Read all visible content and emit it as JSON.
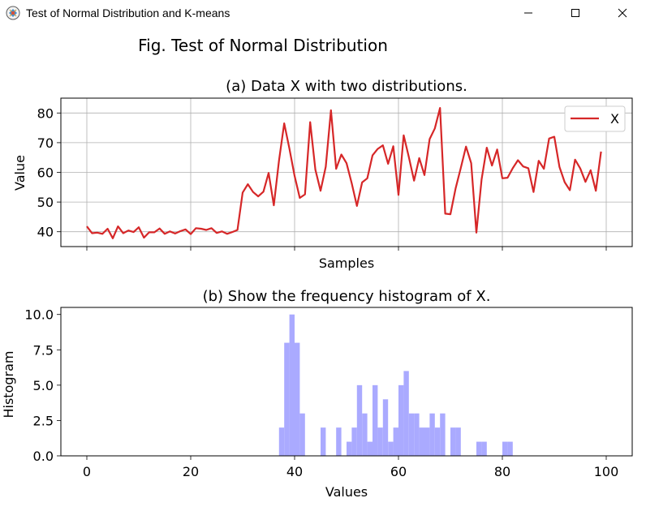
{
  "window": {
    "title": "Test of Normal Distribution and K-means",
    "icon": "app-icon"
  },
  "figure": {
    "suptitle": "Fig. Test of Normal Distribution"
  },
  "chart_data": [
    {
      "type": "line",
      "title": "(a) Data X with two distributions.",
      "xlabel": "Samples",
      "ylabel": "Value",
      "xlim": [
        -5,
        105
      ],
      "ylim": [
        35,
        85
      ],
      "yticks": [
        40,
        50,
        60,
        70,
        80
      ],
      "xticks": [
        0,
        20,
        40,
        60,
        80,
        100
      ],
      "show_xticklabels": false,
      "grid": true,
      "legend": {
        "position": "top-right",
        "entries": [
          "X"
        ]
      },
      "series": [
        {
          "name": "X",
          "color": "#d62728",
          "values": [
            41.8,
            39.5,
            39.7,
            39.3,
            41.0,
            37.8,
            41.8,
            39.5,
            40.4,
            39.9,
            41.5,
            38.0,
            39.8,
            39.8,
            41.1,
            39.3,
            40.1,
            39.4,
            40.2,
            40.8,
            39.2,
            41.2,
            41.0,
            40.6,
            41.2,
            39.6,
            40.1,
            39.3,
            39.9,
            40.6,
            53.2,
            56.0,
            53.4,
            51.9,
            53.5,
            59.8,
            48.9,
            64.0,
            76.5,
            68.0,
            58.8,
            51.4,
            52.6,
            76.9,
            60.9,
            53.8,
            61.9,
            80.9,
            61.2,
            66.0,
            63.1,
            56.3,
            48.7,
            56.6,
            58.0,
            65.7,
            67.9,
            69.1,
            62.9,
            68.8,
            52.4,
            72.5,
            65.1,
            57.2,
            64.8,
            59.1,
            71.2,
            74.8,
            81.7,
            46.1,
            45.9,
            54.6,
            61.5,
            68.7,
            63.1,
            39.7,
            57.6,
            68.3,
            62.3,
            67.7,
            58.0,
            58.2,
            61.4,
            64.1,
            62.0,
            61.4,
            53.4,
            63.9,
            61.2,
            71.4,
            72.0,
            61.8,
            56.7,
            54.0,
            64.3,
            61.3,
            56.8,
            60.7,
            53.8,
            67.0
          ]
        }
      ]
    },
    {
      "type": "bar",
      "title": "(b) Show the frequency histogram of X.",
      "xlabel": "Values",
      "ylabel": "Histogram",
      "xlim": [
        -5,
        105
      ],
      "ylim": [
        0,
        10.5
      ],
      "xticks": [
        0,
        20,
        40,
        60,
        80,
        100
      ],
      "yticks": [
        0.0,
        2.5,
        5.0,
        7.5,
        10.0
      ],
      "yticklabels": [
        "0.0",
        "2.5",
        "5.0",
        "7.5",
        "10.0"
      ],
      "bar_color": "#aaaaff",
      "bin_width": 1,
      "bins": [
        {
          "x": 37,
          "count": 2
        },
        {
          "x": 38,
          "count": 8
        },
        {
          "x": 39,
          "count": 10
        },
        {
          "x": 40,
          "count": 8
        },
        {
          "x": 41,
          "count": 3
        },
        {
          "x": 45,
          "count": 2
        },
        {
          "x": 48,
          "count": 2
        },
        {
          "x": 50,
          "count": 1
        },
        {
          "x": 51,
          "count": 2
        },
        {
          "x": 52,
          "count": 5
        },
        {
          "x": 53,
          "count": 3
        },
        {
          "x": 54,
          "count": 1
        },
        {
          "x": 55,
          "count": 5
        },
        {
          "x": 56,
          "count": 2
        },
        {
          "x": 57,
          "count": 4
        },
        {
          "x": 58,
          "count": 1
        },
        {
          "x": 59,
          "count": 2
        },
        {
          "x": 60,
          "count": 5
        },
        {
          "x": 61,
          "count": 6
        },
        {
          "x": 62,
          "count": 3
        },
        {
          "x": 63,
          "count": 3
        },
        {
          "x": 64,
          "count": 2
        },
        {
          "x": 65,
          "count": 2
        },
        {
          "x": 66,
          "count": 3
        },
        {
          "x": 67,
          "count": 2
        },
        {
          "x": 68,
          "count": 3
        },
        {
          "x": 70,
          "count": 2
        },
        {
          "x": 71,
          "count": 2
        },
        {
          "x": 75,
          "count": 1
        },
        {
          "x": 76,
          "count": 1
        },
        {
          "x": 80,
          "count": 1
        },
        {
          "x": 81,
          "count": 1
        }
      ]
    }
  ]
}
